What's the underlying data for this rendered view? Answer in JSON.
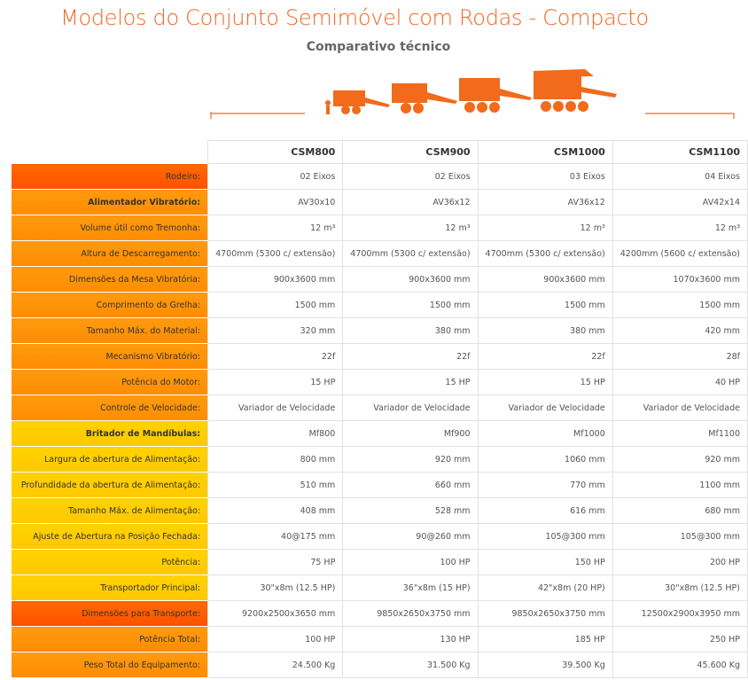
{
  "header": {
    "title": "Modelos do Conjunto Semimóvel com Rodas - Compacto",
    "subtitle": "Comparativo técnico"
  },
  "table": {
    "columns": [
      "CSM800",
      "CSM900",
      "CSM1000",
      "CSM1100"
    ],
    "rows": [
      {
        "label": "Rodeiro:",
        "values": [
          "02 Eixos",
          "02 Eixos",
          "03 Eixos",
          "04 Eixos"
        ]
      },
      {
        "label": "Alimentador Vibratório:",
        "values": [
          "AV30x10",
          "AV36x12",
          "AV36x12",
          "AV42x14"
        ]
      },
      {
        "label": "Volume útil como Tremonha:",
        "values": [
          "12 m³",
          "12 m³",
          "12 m³",
          "12 m³"
        ]
      },
      {
        "label": "Altura de Descarregamento:",
        "values": [
          "4700mm (5300 c/ extensão)",
          "4700mm (5300 c/ extensão)",
          "4700mm (5300 c/ extensão)",
          "4200mm (5600 c/ extensão)"
        ]
      },
      {
        "label": "Dimensões da Mesa Vibratória:",
        "values": [
          "900x3600 mm",
          "900x3600 mm",
          "900x3600 mm",
          "1070x3600 mm"
        ]
      },
      {
        "label": "Comprimento da Grelha:",
        "values": [
          "1500 mm",
          "1500 mm",
          "1500 mm",
          "1500 mm"
        ]
      },
      {
        "label": "Tamanho Máx. do Material:",
        "values": [
          "320 mm",
          "380 mm",
          "380 mm",
          "420 mm"
        ]
      },
      {
        "label": "Mecanismo Vibratório:",
        "values": [
          "22f",
          "22f",
          "22f",
          "28f"
        ]
      },
      {
        "label": "Potência do Motor:",
        "values": [
          "15 HP",
          "15 HP",
          "15 HP",
          "40 HP"
        ]
      },
      {
        "label": "Controle de Velocidade:",
        "values": [
          "Variador de Velocidade",
          "Variador de Velocidade",
          "Variador de Velocidade",
          "Variador de Velocidade"
        ]
      },
      {
        "label": "Britador de Mandíbulas:",
        "values": [
          "Mf800",
          "Mf900",
          "Mf1000",
          "Mf1100"
        ]
      },
      {
        "label": "Largura de abertura de Alimentação:",
        "values": [
          "800 mm",
          "920 mm",
          "1060 mm",
          "920 mm"
        ]
      },
      {
        "label": "Profundidade da abertura de Alimentação:",
        "values": [
          "510 mm",
          "660 mm",
          "770 mm",
          "1100 mm"
        ]
      },
      {
        "label": "Tamanho Máx. de Alimentação:",
        "values": [
          "408 mm",
          "528 mm",
          "616 mm",
          "680 mm"
        ]
      },
      {
        "label": "Ajuste de Abertura na Posição Fechada:",
        "values": [
          "40@175 mm",
          "90@260 mm",
          "105@300 mm",
          "105@300 mm"
        ]
      },
      {
        "label": "Potência:",
        "values": [
          "75 HP",
          "100 HP",
          "150 HP",
          "200 HP"
        ]
      },
      {
        "label": "Transportador Principal:",
        "values": [
          "30\"x8m (12.5 HP)",
          "36\"x8m (15 HP)",
          "42\"x8m (20 HP)",
          "30\"x8m (12.5 HP)"
        ]
      },
      {
        "label": "Dimensões para Transporte:",
        "values": [
          "9200x2500x3650 mm",
          "9850x2650x3750 mm",
          "9850x2650x3750 mm",
          "12500x2900x3950 mm"
        ]
      },
      {
        "label": "Potência Total:",
        "values": [
          "100 HP",
          "130 HP",
          "185 HP",
          "250 HP"
        ]
      },
      {
        "label": "Peso Total do Equipamento:",
        "values": [
          "24.500 Kg",
          "31.500 Kg",
          "39.500 Kg",
          "45.600 Kg"
        ]
      }
    ]
  }
}
